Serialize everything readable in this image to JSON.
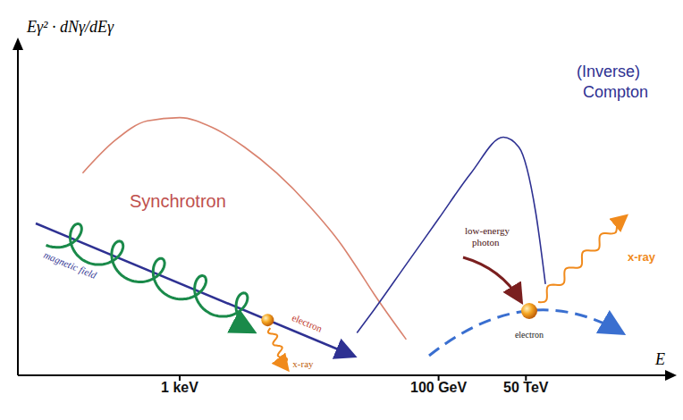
{
  "chart_data": {
    "type": "line",
    "x_label": "E",
    "y_label": "Eγ² · dNγ/dEγ",
    "log": "x",
    "tick_labels": "x",
    "xlim": [
      0.01,
      1e+18
    ],
    "xticks": [
      {
        "value": 1000,
        "label": "1 keV"
      },
      {
        "value": 100000000000.0,
        "label": "100 GeV"
      },
      {
        "value": 50000000000000.0,
        "label": "50 TeV"
      }
    ],
    "ylim": [
      0,
      100
    ],
    "x": [
      1,
      10,
      100,
      1000,
      10000.0,
      100000.0,
      1000000.0,
      10000000.0,
      100000000.0,
      300000000.0,
      1000000000.0,
      10000000000.0,
      100000000000.0,
      1000000000000.0,
      10000000000000.0,
      30000000000000.0,
      100000000000000.0,
      200000000000000.0
    ],
    "series": [
      {
        "name": "Synchrotron",
        "color": "#d9826e",
        "values": [
          62,
          72,
          78,
          79,
          76,
          70,
          62,
          52,
          40,
          33,
          25,
          11,
          null,
          null,
          null,
          null,
          null,
          null
        ]
      },
      {
        "name": "(Inverse) Compton",
        "color": "#2e3192",
        "values": [
          null,
          null,
          null,
          null,
          null,
          null,
          null,
          null,
          null,
          13,
          20,
          34,
          48,
          62,
          73,
          70,
          50,
          28
        ]
      }
    ],
    "annotations": {
      "magnetic_field": "magnetic field",
      "sync_electron": "electron",
      "sync_xray": "x-ray",
      "photon": "low-energy photon",
      "ic_electron": "electron",
      "ic_xray": "x-ray"
    }
  }
}
